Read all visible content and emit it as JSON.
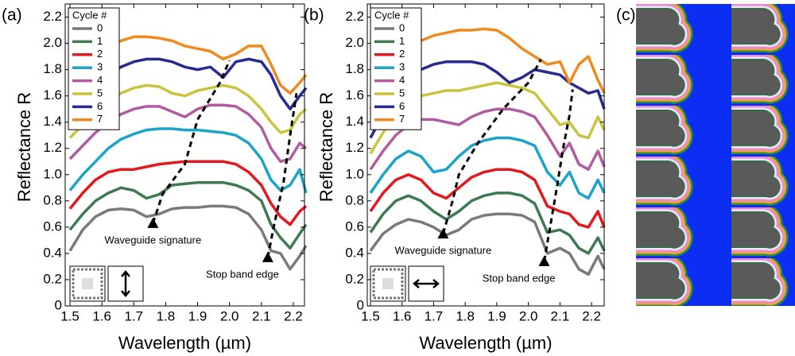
{
  "chart_data": [
    {
      "type": "line",
      "panel_label": "(a)",
      "x_label": "Wavelength (µm)",
      "y_label": "Reflectance R",
      "legend_title": "Cycle #",
      "legend": "top-left",
      "xlim": [
        1.485,
        2.235
      ],
      "ylim": [
        0,
        2.3
      ],
      "xticks": [
        1.5,
        1.6,
        1.7,
        1.8,
        1.9,
        {
          "value": 2,
          "label": "2.0"
        },
        2.1,
        2.2
      ],
      "yticks": [
        0,
        0.2,
        0.4,
        0.6,
        0.8,
        {
          "value": 1,
          "label": "1.0"
        },
        1.2,
        1.4,
        1.6,
        1.8,
        {
          "value": 2,
          "label": "2.0"
        },
        2.2
      ],
      "x": [
        1.5,
        1.54,
        1.58,
        1.62,
        1.66,
        1.7,
        1.74,
        1.78,
        1.82,
        1.86,
        1.9,
        1.94,
        1.98,
        2.02,
        2.06,
        2.1,
        2.13,
        2.16,
        2.19,
        2.22,
        2.24
      ],
      "series": [
        {
          "name": "0",
          "color": "#7a7a7a",
          "values": [
            0.42,
            0.58,
            0.68,
            0.73,
            0.74,
            0.73,
            0.68,
            0.7,
            0.74,
            0.75,
            0.75,
            0.76,
            0.76,
            0.75,
            0.7,
            0.58,
            0.42,
            0.4,
            0.28,
            0.38,
            0.46
          ]
        },
        {
          "name": "1",
          "color": "#3d7a52",
          "values": [
            0.58,
            0.7,
            0.8,
            0.86,
            0.9,
            0.88,
            0.82,
            0.85,
            0.92,
            0.93,
            0.94,
            0.94,
            0.94,
            0.92,
            0.88,
            0.8,
            0.62,
            0.52,
            0.44,
            0.55,
            0.62
          ]
        },
        {
          "name": "2",
          "color": "#e2191e",
          "values": [
            0.74,
            0.86,
            0.96,
            1.02,
            1.04,
            1.04,
            1.06,
            1.08,
            1.09,
            1.1,
            1.1,
            1.1,
            1.1,
            1.08,
            1.02,
            0.92,
            0.78,
            0.68,
            0.62,
            0.72,
            0.76
          ]
        },
        {
          "name": "3",
          "color": "#1ba3c8",
          "values": [
            0.88,
            1.0,
            1.1,
            1.2,
            1.27,
            1.31,
            1.34,
            1.35,
            1.35,
            1.34,
            1.34,
            1.33,
            1.32,
            1.3,
            1.24,
            1.12,
            0.96,
            0.88,
            0.92,
            1.04,
            0.86
          ]
        },
        {
          "name": "4",
          "color": "#b25ca0",
          "values": [
            1.12,
            1.22,
            1.32,
            1.4,
            1.46,
            1.5,
            1.52,
            1.52,
            1.48,
            1.44,
            1.5,
            1.53,
            1.53,
            1.52,
            1.46,
            1.36,
            1.2,
            1.1,
            1.12,
            1.24,
            1.2
          ]
        },
        {
          "name": "5",
          "color": "#c9c43e",
          "values": [
            1.28,
            1.38,
            1.48,
            1.56,
            1.62,
            1.66,
            1.68,
            1.67,
            1.62,
            1.6,
            1.64,
            1.66,
            1.68,
            1.66,
            1.6,
            1.5,
            1.4,
            1.32,
            1.34,
            1.46,
            1.5
          ]
        },
        {
          "name": "6",
          "color": "#272a90",
          "values": [
            1.38,
            1.52,
            1.66,
            1.76,
            1.82,
            1.86,
            1.88,
            1.88,
            1.86,
            1.82,
            1.8,
            1.82,
            1.74,
            1.86,
            1.88,
            1.86,
            1.76,
            1.6,
            1.5,
            1.6,
            1.66
          ]
        },
        {
          "name": "7",
          "color": "#f18a1e",
          "values": [
            1.56,
            1.74,
            1.86,
            1.96,
            2.02,
            2.05,
            2.05,
            2.04,
            2.02,
            1.98,
            1.96,
            1.94,
            1.88,
            1.92,
            1.98,
            1.98,
            1.84,
            1.68,
            1.62,
            1.7,
            1.76
          ]
        }
      ],
      "annotations": [
        {
          "text": "Waveguide signature",
          "x": 1.76,
          "y": 0.63
        },
        {
          "text": "Stop band edge",
          "x": 2.12,
          "y": 0.37
        }
      ],
      "guide_lines": [
        {
          "x": [
            1.76,
            1.79,
            1.86,
            1.9,
            1.97,
            2.0
          ],
          "y": [
            0.63,
            0.85,
            1.08,
            1.42,
            1.7,
            1.87
          ]
        },
        {
          "x": [
            2.12,
            2.14,
            2.17,
            2.19,
            2.21
          ],
          "y": [
            0.37,
            0.62,
            0.95,
            1.3,
            1.62
          ]
        }
      ]
    },
    {
      "type": "line",
      "panel_label": "(b)",
      "x_label": "Wavelength (µm)",
      "y_label": "Reflectance R",
      "legend_title": "Cycle #",
      "legend": "top-left",
      "xlim": [
        1.49,
        2.24
      ],
      "ylim": [
        0,
        2.3
      ],
      "xticks": [
        1.5,
        1.6,
        1.7,
        1.8,
        1.9,
        {
          "value": 2,
          "label": "2.0"
        },
        2.1,
        2.2
      ],
      "yticks": [
        0,
        0.2,
        0.4,
        0.6,
        0.8,
        {
          "value": 1,
          "label": "1.0"
        },
        1.2,
        1.4,
        1.6,
        1.8,
        {
          "value": 2,
          "label": "2.0"
        },
        2.2
      ],
      "x": [
        1.5,
        1.54,
        1.58,
        1.62,
        1.66,
        1.7,
        1.74,
        1.78,
        1.82,
        1.86,
        1.9,
        1.94,
        1.98,
        2.02,
        2.06,
        2.1,
        2.13,
        2.16,
        2.19,
        2.22,
        2.24
      ],
      "series": [
        {
          "name": "0",
          "color": "#7a7a7a",
          "values": [
            0.42,
            0.55,
            0.62,
            0.66,
            0.64,
            0.6,
            0.54,
            0.58,
            0.66,
            0.69,
            0.7,
            0.7,
            0.69,
            0.64,
            0.4,
            0.44,
            0.4,
            0.28,
            0.24,
            0.38,
            0.28
          ]
        },
        {
          "name": "1",
          "color": "#3d7a52",
          "values": [
            0.56,
            0.7,
            0.8,
            0.84,
            0.8,
            0.72,
            0.66,
            0.72,
            0.8,
            0.84,
            0.86,
            0.86,
            0.84,
            0.78,
            0.56,
            0.58,
            0.54,
            0.44,
            0.4,
            0.52,
            0.42
          ]
        },
        {
          "name": "2",
          "color": "#e2191e",
          "values": [
            0.72,
            0.86,
            0.96,
            1.0,
            0.96,
            0.86,
            0.82,
            0.9,
            0.98,
            1.02,
            1.04,
            1.04,
            1.02,
            0.96,
            0.76,
            0.72,
            0.7,
            0.62,
            0.6,
            0.72,
            0.6
          ]
        },
        {
          "name": "3",
          "color": "#1ba3c8",
          "values": [
            0.86,
            1.0,
            1.12,
            1.18,
            1.14,
            1.02,
            1.04,
            1.14,
            1.22,
            1.26,
            1.28,
            1.28,
            1.26,
            1.22,
            1.02,
            0.92,
            1.02,
            0.86,
            0.82,
            0.96,
            0.86
          ]
        },
        {
          "name": "4",
          "color": "#b25ca0",
          "values": [
            1.04,
            1.18,
            1.3,
            1.38,
            1.42,
            1.42,
            1.4,
            1.38,
            1.44,
            1.48,
            1.5,
            1.5,
            1.48,
            1.44,
            1.3,
            1.14,
            1.24,
            1.08,
            1.04,
            1.18,
            1.06
          ]
        },
        {
          "name": "5",
          "color": "#c9c43e",
          "values": [
            1.16,
            1.32,
            1.46,
            1.56,
            1.6,
            1.62,
            1.64,
            1.64,
            1.66,
            1.68,
            1.7,
            1.68,
            1.66,
            1.62,
            1.5,
            1.38,
            1.4,
            1.3,
            1.28,
            1.44,
            1.34
          ]
        },
        {
          "name": "6",
          "color": "#272a90",
          "values": [
            1.28,
            1.46,
            1.62,
            1.74,
            1.8,
            1.84,
            1.86,
            1.86,
            1.86,
            1.84,
            1.78,
            1.7,
            1.74,
            1.8,
            1.78,
            1.76,
            1.7,
            1.66,
            1.62,
            1.64,
            1.5
          ]
        },
        {
          "name": "7",
          "color": "#f18a1e",
          "values": [
            1.5,
            1.7,
            1.86,
            1.96,
            2.02,
            2.06,
            2.08,
            2.1,
            2.1,
            2.11,
            2.1,
            2.04,
            1.96,
            1.9,
            1.84,
            1.86,
            1.7,
            1.84,
            1.9,
            1.72,
            1.62
          ]
        }
      ],
      "annotations": [
        {
          "text": "Waveguide signature",
          "x": 1.73,
          "y": 0.55
        },
        {
          "text": "Stop band edge",
          "x": 2.05,
          "y": 0.34
        }
      ],
      "guide_lines": [
        {
          "x": [
            1.73,
            1.76,
            1.78,
            1.84,
            1.92,
            2.0,
            2.04
          ],
          "y": [
            0.55,
            0.8,
            1.0,
            1.24,
            1.5,
            1.7,
            1.88
          ]
        },
        {
          "x": [
            2.05,
            2.07,
            2.09,
            2.11,
            2.13,
            2.14
          ],
          "y": [
            0.34,
            0.62,
            0.9,
            1.2,
            1.45,
            1.65
          ]
        }
      ]
    }
  ],
  "panel_c": {
    "label": "(c)"
  }
}
